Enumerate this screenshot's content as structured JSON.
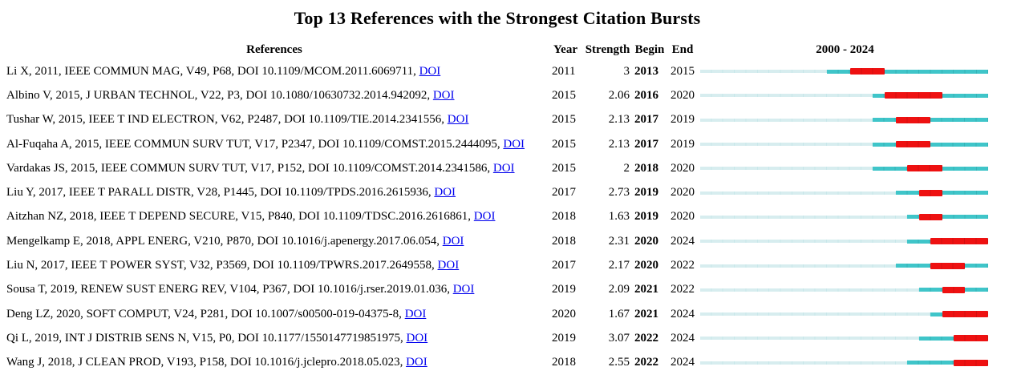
{
  "title": "Top 13 References with the Strongest Citation Bursts",
  "link_label": "DOI",
  "chart_data": {
    "type": "table",
    "title": "Top 13 References with the Strongest Citation Bursts",
    "columns": [
      "References",
      "Year",
      "Strength",
      "Begin",
      "End"
    ],
    "timeline_label": "2000 - 2024",
    "timeline_range": [
      2000,
      2024
    ],
    "colors": {
      "pre_publication": "#D7EDEF",
      "active": "#3FC5C9",
      "burst": "#EE1111",
      "link": "#0000EE"
    },
    "rows": [
      {
        "reference": "Li X, 2011, IEEE COMMUN MAG, V49, P68, DOI 10.1109/MCOM.2011.6069711,",
        "year": 2011,
        "strength": "3",
        "begin": 2013,
        "end": 2015
      },
      {
        "reference": "Albino V, 2015, J URBAN TECHNOL, V22, P3, DOI 10.1080/10630732.2014.942092,",
        "year": 2015,
        "strength": "2.06",
        "begin": 2016,
        "end": 2020
      },
      {
        "reference": "Tushar W, 2015, IEEE T IND ELECTRON, V62, P2487, DOI 10.1109/TIE.2014.2341556,",
        "year": 2015,
        "strength": "2.13",
        "begin": 2017,
        "end": 2019
      },
      {
        "reference": "Al-Fuqaha A, 2015, IEEE COMMUN SURV TUT, V17, P2347, DOI 10.1109/COMST.2015.2444095,",
        "year": 2015,
        "strength": "2.13",
        "begin": 2017,
        "end": 2019
      },
      {
        "reference": "Vardakas JS, 2015, IEEE COMMUN SURV TUT, V17, P152, DOI 10.1109/COMST.2014.2341586,",
        "year": 2015,
        "strength": "2",
        "begin": 2018,
        "end": 2020
      },
      {
        "reference": "Liu Y, 2017, IEEE T PARALL DISTR, V28, P1445, DOI 10.1109/TPDS.2016.2615936,",
        "year": 2017,
        "strength": "2.73",
        "begin": 2019,
        "end": 2020
      },
      {
        "reference": "Aitzhan NZ, 2018, IEEE T DEPEND SECURE, V15, P840, DOI 10.1109/TDSC.2016.2616861,",
        "year": 2018,
        "strength": "1.63",
        "begin": 2019,
        "end": 2020
      },
      {
        "reference": "Mengelkamp E, 2018, APPL ENERG, V210, P870, DOI 10.1016/j.apenergy.2017.06.054,",
        "year": 2018,
        "strength": "2.31",
        "begin": 2020,
        "end": 2024
      },
      {
        "reference": "Liu N, 2017, IEEE T POWER SYST, V32, P3569, DOI 10.1109/TPWRS.2017.2649558,",
        "year": 2017,
        "strength": "2.17",
        "begin": 2020,
        "end": 2022
      },
      {
        "reference": "Sousa T, 2019, RENEW SUST ENERG REV, V104, P367, DOI 10.1016/j.rser.2019.01.036,",
        "year": 2019,
        "strength": "2.09",
        "begin": 2021,
        "end": 2022
      },
      {
        "reference": "Deng LZ, 2020, SOFT COMPUT, V24, P281, DOI 10.1007/s00500-019-04375-8,",
        "year": 2020,
        "strength": "1.67",
        "begin": 2021,
        "end": 2024
      },
      {
        "reference": "Qi L, 2019, INT J DISTRIB SENS N, V15, P0, DOI 10.1177/1550147719851975,",
        "year": 2019,
        "strength": "3.07",
        "begin": 2022,
        "end": 2024
      },
      {
        "reference": "Wang J, 2018, J CLEAN PROD, V193, P158, DOI 10.1016/j.jclepro.2018.05.023,",
        "year": 2018,
        "strength": "2.55",
        "begin": 2022,
        "end": 2024
      }
    ]
  }
}
